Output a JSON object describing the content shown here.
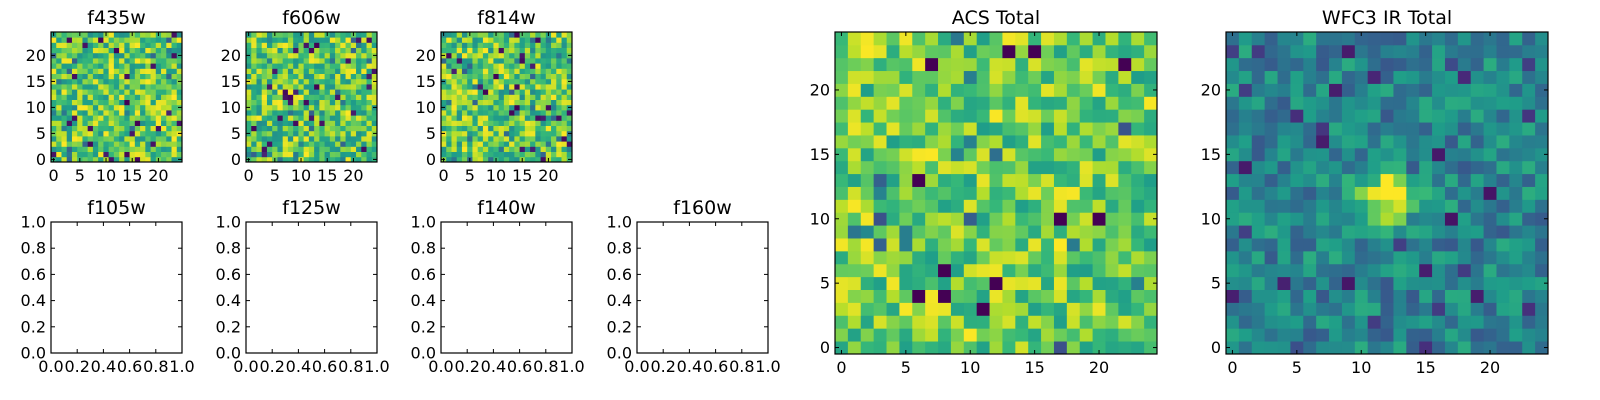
{
  "chart_data": [
    {
      "id": "f435w",
      "type": "heatmap",
      "title": "f435w",
      "grid_size": 25,
      "seed": 11,
      "colormap": "viridis",
      "xticks": [
        0,
        5,
        10,
        15,
        20
      ],
      "yticks": [
        0,
        5,
        10,
        15,
        20
      ],
      "xtick_labels": [
        "0",
        "5",
        "10",
        "15",
        "20"
      ],
      "ytick_labels": [
        "0",
        "5",
        "10",
        "15",
        "20"
      ],
      "xlim": [
        -0.5,
        24.5
      ],
      "ylim": [
        -0.5,
        24.5
      ]
    },
    {
      "id": "f606w",
      "type": "heatmap",
      "title": "f606w",
      "grid_size": 25,
      "seed": 23,
      "colormap": "viridis",
      "xticks": [
        0,
        5,
        10,
        15,
        20
      ],
      "yticks": [
        0,
        5,
        10,
        15,
        20
      ],
      "xtick_labels": [
        "0",
        "5",
        "10",
        "15",
        "20"
      ],
      "ytick_labels": [
        "0",
        "5",
        "10",
        "15",
        "20"
      ],
      "xlim": [
        -0.5,
        24.5
      ],
      "ylim": [
        -0.5,
        24.5
      ]
    },
    {
      "id": "f814w",
      "type": "heatmap",
      "title": "f814w",
      "grid_size": 25,
      "seed": 37,
      "colormap": "viridis",
      "xticks": [
        0,
        5,
        10,
        15,
        20
      ],
      "yticks": [
        0,
        5,
        10,
        15,
        20
      ],
      "xtick_labels": [
        "0",
        "5",
        "10",
        "15",
        "20"
      ],
      "ytick_labels": [
        "0",
        "5",
        "10",
        "15",
        "20"
      ],
      "xlim": [
        -0.5,
        24.5
      ],
      "ylim": [
        -0.5,
        24.5
      ]
    },
    {
      "id": "f105w",
      "type": "empty",
      "title": "f105w",
      "xticks": [
        0,
        0.2,
        0.4,
        0.6,
        0.8,
        1.0
      ],
      "yticks": [
        0,
        0.2,
        0.4,
        0.6,
        0.8,
        1.0
      ],
      "xtick_labels": [
        "0.0",
        "0.2",
        "0.4",
        "0.6",
        "0.8",
        "1.0"
      ],
      "ytick_labels": [
        "0.0",
        "0.2",
        "0.4",
        "0.6",
        "0.8",
        "1.0"
      ],
      "xlim": [
        0,
        1
      ],
      "ylim": [
        0,
        1
      ]
    },
    {
      "id": "f125w",
      "type": "empty",
      "title": "f125w",
      "xticks": [
        0,
        0.2,
        0.4,
        0.6,
        0.8,
        1.0
      ],
      "yticks": [
        0,
        0.2,
        0.4,
        0.6,
        0.8,
        1.0
      ],
      "xtick_labels": [
        "0.0",
        "0.2",
        "0.4",
        "0.6",
        "0.8",
        "1.0"
      ],
      "ytick_labels": [
        "0.0",
        "0.2",
        "0.4",
        "0.6",
        "0.8",
        "1.0"
      ],
      "xlim": [
        0,
        1
      ],
      "ylim": [
        0,
        1
      ]
    },
    {
      "id": "f140w",
      "type": "empty",
      "title": "f140w",
      "xticks": [
        0,
        0.2,
        0.4,
        0.6,
        0.8,
        1.0
      ],
      "yticks": [
        0,
        0.2,
        0.4,
        0.6,
        0.8,
        1.0
      ],
      "xtick_labels": [
        "0.0",
        "0.2",
        "0.4",
        "0.6",
        "0.8",
        "1.0"
      ],
      "ytick_labels": [
        "0.0",
        "0.2",
        "0.4",
        "0.6",
        "0.8",
        "1.0"
      ],
      "xlim": [
        0,
        1
      ],
      "ylim": [
        0,
        1
      ]
    },
    {
      "id": "f160w",
      "type": "empty",
      "title": "f160w",
      "xticks": [
        0,
        0.2,
        0.4,
        0.6,
        0.8,
        1.0
      ],
      "yticks": [
        0,
        0.2,
        0.4,
        0.6,
        0.8,
        1.0
      ],
      "xtick_labels": [
        "0.0",
        "0.2",
        "0.4",
        "0.6",
        "0.8",
        "1.0"
      ],
      "ytick_labels": [
        "0.0",
        "0.2",
        "0.4",
        "0.6",
        "0.8",
        "1.0"
      ],
      "xlim": [
        0,
        1
      ],
      "ylim": [
        0,
        1
      ]
    },
    {
      "id": "acs-total",
      "type": "heatmap",
      "title": "ACS Total",
      "grid_size": 25,
      "seed": 53,
      "colormap": "viridis",
      "bias": "high",
      "xticks": [
        0,
        5,
        10,
        15,
        20
      ],
      "yticks": [
        0,
        5,
        10,
        15,
        20
      ],
      "xtick_labels": [
        "0",
        "5",
        "10",
        "15",
        "20"
      ],
      "ytick_labels": [
        "0",
        "5",
        "10",
        "15",
        "20"
      ],
      "xlim": [
        -0.5,
        24.5
      ],
      "ylim": [
        -0.5,
        24.5
      ]
    },
    {
      "id": "wfc3-ir-total",
      "type": "heatmap",
      "title": "WFC3 IR Total",
      "grid_size": 25,
      "seed": 71,
      "colormap": "viridis",
      "bias": "smooth",
      "source_center": [
        12,
        12
      ],
      "xticks": [
        0,
        5,
        10,
        15,
        20
      ],
      "yticks": [
        0,
        5,
        10,
        15,
        20
      ],
      "xtick_labels": [
        "0",
        "5",
        "10",
        "15",
        "20"
      ],
      "ytick_labels": [
        "0",
        "5",
        "10",
        "15",
        "20"
      ],
      "xlim": [
        -0.5,
        24.5
      ],
      "ylim": [
        -0.5,
        24.5
      ]
    }
  ]
}
